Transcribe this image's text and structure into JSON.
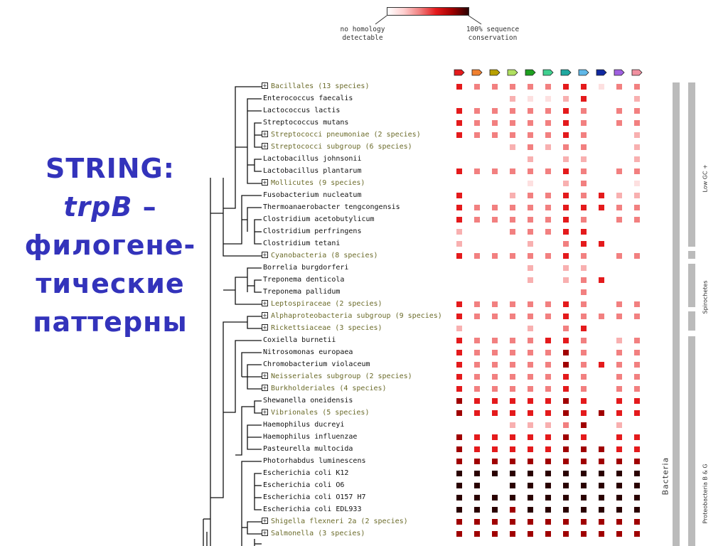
{
  "title": {
    "line1": "STRING:",
    "line2_gene": "trpB",
    "line2_suffix": " –",
    "line3": "филогене-",
    "line4": "тические",
    "line5": "паттерны"
  },
  "legend": {
    "low_label_1": "no homology",
    "low_label_2": "detectable",
    "high_label_1": "100% sequence",
    "high_label_2": "conservation"
  },
  "gene_arrows": [
    "#e41a1c",
    "#f08030",
    "#b8a000",
    "#b0e060",
    "#1ea020",
    "#40d090",
    "#20a8a0",
    "#60b8e8",
    "#1028a0",
    "#a060e0",
    "#f090a0"
  ],
  "color_scale": [
    "#ffffff",
    "#fde0e0",
    "#f8b0b0",
    "#f28080",
    "#e41a1c",
    "#a00000",
    "#2a0000"
  ],
  "rows": [
    {
      "name": "Bacillales (13 species)",
      "group": true,
      "cells": [
        4,
        3,
        3,
        3,
        3,
        3,
        4,
        4,
        1,
        3,
        3
      ]
    },
    {
      "name": "Enterococcus faecalis",
      "group": false,
      "cells": [
        0,
        0,
        0,
        2,
        1,
        1,
        2,
        4,
        0,
        0,
        2
      ]
    },
    {
      "name": "Lactococcus lactis",
      "group": false,
      "cells": [
        4,
        3,
        3,
        3,
        3,
        3,
        4,
        3,
        0,
        3,
        3
      ]
    },
    {
      "name": "Streptococcus mutans",
      "group": false,
      "cells": [
        4,
        3,
        3,
        3,
        3,
        3,
        4,
        3,
        0,
        3,
        3
      ]
    },
    {
      "name": "Streptococci pneumoniae (2 species)",
      "group": true,
      "cells": [
        4,
        3,
        3,
        3,
        3,
        3,
        4,
        3,
        0,
        0,
        2
      ]
    },
    {
      "name": "Streptococci subgroup (6 species)",
      "group": true,
      "cells": [
        0,
        0,
        0,
        2,
        3,
        2,
        3,
        3,
        0,
        0,
        2
      ]
    },
    {
      "name": "Lactobacillus johnsonii",
      "group": false,
      "cells": [
        0,
        0,
        0,
        0,
        2,
        0,
        2,
        2,
        0,
        0,
        2
      ]
    },
    {
      "name": "Lactobacillus plantarum",
      "group": false,
      "cells": [
        4,
        3,
        3,
        3,
        3,
        3,
        4,
        3,
        0,
        3,
        3
      ]
    },
    {
      "name": "Mollicutes (9 species)",
      "group": true,
      "cells": [
        0,
        0,
        0,
        0,
        1,
        0,
        2,
        3,
        0,
        0,
        1
      ]
    },
    {
      "name": "Fusobacterium nucleatum",
      "group": false,
      "cells": [
        4,
        0,
        0,
        2,
        3,
        3,
        4,
        3,
        4,
        2,
        2
      ]
    },
    {
      "name": "Thermoanaerobacter tengcongensis",
      "group": false,
      "cells": [
        4,
        3,
        3,
        3,
        3,
        3,
        4,
        4,
        4,
        3,
        3
      ]
    },
    {
      "name": "Clostridium acetobutylicum",
      "group": false,
      "cells": [
        4,
        3,
        3,
        3,
        3,
        3,
        4,
        3,
        0,
        3,
        3
      ]
    },
    {
      "name": "Clostridium perfringens",
      "group": false,
      "cells": [
        2,
        0,
        0,
        3,
        3,
        3,
        4,
        4,
        0,
        0,
        0
      ]
    },
    {
      "name": "Clostridium tetani",
      "group": false,
      "cells": [
        2,
        0,
        0,
        0,
        2,
        0,
        3,
        4,
        4,
        0,
        0
      ]
    },
    {
      "name": "Cyanobacteria (8 species)",
      "group": true,
      "cells": [
        4,
        3,
        3,
        3,
        3,
        3,
        4,
        3,
        0,
        3,
        3
      ]
    },
    {
      "name": "Borrelia burgdorferi",
      "group": false,
      "cells": [
        0,
        0,
        0,
        0,
        2,
        0,
        2,
        2,
        0,
        0,
        0
      ]
    },
    {
      "name": "Treponema denticola",
      "group": false,
      "cells": [
        0,
        0,
        0,
        0,
        2,
        0,
        2,
        3,
        4,
        0,
        0
      ]
    },
    {
      "name": "Treponema pallidum",
      "group": false,
      "cells": [
        0,
        0,
        0,
        0,
        0,
        0,
        0,
        3,
        0,
        0,
        0
      ]
    },
    {
      "name": "Leptospiraceae (2 species)",
      "group": true,
      "cells": [
        4,
        3,
        3,
        3,
        3,
        3,
        4,
        3,
        0,
        3,
        3
      ]
    },
    {
      "name": "Alphaproteobacteria subgroup (9 species)",
      "group": true,
      "cells": [
        4,
        3,
        3,
        3,
        3,
        3,
        4,
        3,
        3,
        3,
        3
      ]
    },
    {
      "name": "Rickettsiaceae (3 species)",
      "group": true,
      "cells": [
        2,
        0,
        0,
        0,
        2,
        0,
        3,
        4,
        0,
        0,
        0
      ]
    },
    {
      "name": "Coxiella burnetii",
      "group": false,
      "cells": [
        4,
        3,
        3,
        3,
        3,
        4,
        4,
        3,
        0,
        2,
        3
      ]
    },
    {
      "name": "Nitrosomonas europaea",
      "group": false,
      "cells": [
        4,
        3,
        3,
        3,
        3,
        3,
        5,
        3,
        0,
        3,
        3
      ]
    },
    {
      "name": "Chromobacterium violaceum",
      "group": false,
      "cells": [
        4,
        3,
        3,
        3,
        3,
        3,
        5,
        3,
        4,
        3,
        3
      ]
    },
    {
      "name": "Neisseriales subgroup (2 species)",
      "group": true,
      "cells": [
        4,
        3,
        3,
        3,
        3,
        3,
        4,
        3,
        0,
        3,
        3
      ]
    },
    {
      "name": "Burkholderiales (4 species)",
      "group": true,
      "cells": [
        4,
        3,
        3,
        3,
        3,
        3,
        4,
        3,
        0,
        3,
        3
      ]
    },
    {
      "name": "Shewanella oneidensis",
      "group": false,
      "cells": [
        5,
        4,
        4,
        4,
        4,
        4,
        5,
        4,
        0,
        4,
        4
      ]
    },
    {
      "name": "Vibrionales (5 species)",
      "group": true,
      "cells": [
        5,
        4,
        4,
        4,
        4,
        4,
        5,
        4,
        5,
        4,
        4
      ]
    },
    {
      "name": "Haemophilus ducreyi",
      "group": false,
      "cells": [
        0,
        0,
        0,
        2,
        2,
        2,
        3,
        5,
        0,
        2,
        0
      ]
    },
    {
      "name": "Haemophilus influenzae",
      "group": false,
      "cells": [
        5,
        4,
        4,
        4,
        4,
        4,
        5,
        4,
        0,
        4,
        4
      ]
    },
    {
      "name": "Pasteurella multocida",
      "group": false,
      "cells": [
        5,
        4,
        4,
        4,
        4,
        4,
        5,
        5,
        5,
        4,
        4
      ]
    },
    {
      "name": "Photorhabdus luminescens",
      "group": false,
      "cells": [
        5,
        5,
        5,
        5,
        5,
        5,
        5,
        5,
        5,
        5,
        5
      ]
    },
    {
      "name": "Escherichia coli K12",
      "group": false,
      "cells": [
        6,
        6,
        6,
        6,
        6,
        6,
        6,
        6,
        6,
        6,
        6
      ]
    },
    {
      "name": "Escherichia coli O6",
      "group": false,
      "cells": [
        6,
        6,
        0,
        6,
        6,
        6,
        6,
        6,
        6,
        6,
        6
      ]
    },
    {
      "name": "Escherichia coli O157 H7",
      "group": false,
      "cells": [
        6,
        6,
        6,
        6,
        6,
        6,
        6,
        6,
        6,
        6,
        6
      ]
    },
    {
      "name": "Escherichia coli EDL933",
      "group": false,
      "cells": [
        6,
        6,
        6,
        5,
        6,
        6,
        6,
        6,
        6,
        6,
        6
      ]
    },
    {
      "name": "Shigella flexneri 2a (2 species)",
      "group": true,
      "cells": [
        5,
        5,
        5,
        5,
        5,
        5,
        5,
        5,
        5,
        5,
        5
      ]
    },
    {
      "name": "Salmonella (3 species)",
      "group": true,
      "cells": [
        5,
        5,
        5,
        5,
        5,
        5,
        5,
        5,
        5,
        5,
        5
      ]
    }
  ],
  "taxonomy": {
    "bacteria_label": "Bacteria",
    "low_gc_label": "Low GC +",
    "spirochetes_label": "Spirochetes",
    "proteobacteria_label": "Proteobacteria B & G"
  }
}
